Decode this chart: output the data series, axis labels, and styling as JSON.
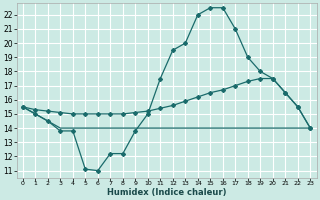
{
  "xlabel": "Humidex (Indice chaleur)",
  "bg_color": "#cceae4",
  "grid_color": "#ffffff",
  "line_color": "#1a6b6b",
  "xlim": [
    -0.5,
    23.5
  ],
  "ylim": [
    10.5,
    22.8
  ],
  "xticks": [
    0,
    1,
    2,
    3,
    4,
    5,
    6,
    7,
    8,
    9,
    10,
    11,
    12,
    13,
    14,
    15,
    16,
    17,
    18,
    19,
    20,
    21,
    22,
    23
  ],
  "yticks": [
    11,
    12,
    13,
    14,
    15,
    16,
    17,
    18,
    19,
    20,
    21,
    22
  ],
  "line1_x": [
    0,
    1,
    2,
    3,
    4,
    5,
    6,
    7,
    8,
    9,
    10,
    11,
    12,
    13,
    14,
    15,
    16,
    17,
    18,
    19,
    20,
    21,
    22,
    23
  ],
  "line1_y": [
    15.5,
    15.0,
    14.5,
    13.8,
    13.8,
    11.1,
    11.0,
    12.2,
    12.2,
    13.8,
    15.0,
    17.5,
    19.5,
    20.0,
    22.0,
    22.5,
    22.5,
    21.0,
    19.0,
    18.0,
    17.5,
    16.5,
    15.5,
    14.0
  ],
  "line2_x": [
    0,
    1,
    2,
    3,
    4,
    5,
    6,
    7,
    8,
    9,
    10,
    11,
    12,
    13,
    14,
    15,
    16,
    17,
    18,
    19,
    20,
    21,
    22,
    23
  ],
  "line2_y": [
    15.5,
    15.3,
    15.2,
    15.1,
    15.0,
    15.0,
    15.0,
    15.0,
    15.0,
    15.1,
    15.2,
    15.4,
    15.6,
    15.9,
    16.2,
    16.5,
    16.7,
    17.0,
    17.3,
    17.5,
    17.5,
    16.5,
    15.5,
    14.0
  ],
  "line3_x": [
    0,
    3,
    4,
    5,
    6,
    7,
    8,
    9,
    10,
    11,
    12,
    13,
    14,
    15,
    16,
    17,
    18,
    19,
    20,
    22,
    23
  ],
  "line3_y": [
    15.5,
    14.0,
    14.0,
    14.0,
    14.0,
    14.0,
    14.0,
    14.0,
    14.0,
    14.0,
    14.0,
    14.0,
    14.0,
    14.0,
    14.0,
    14.0,
    14.0,
    14.0,
    14.0,
    14.0,
    14.0
  ]
}
